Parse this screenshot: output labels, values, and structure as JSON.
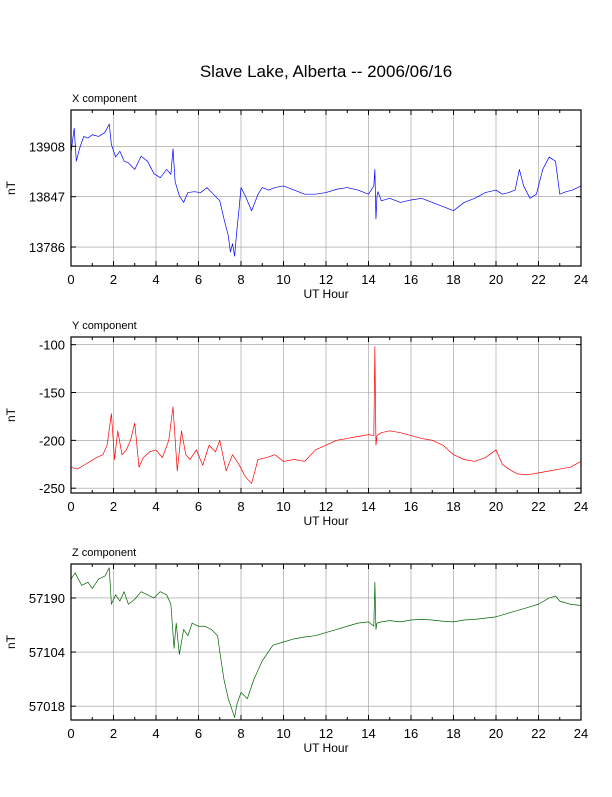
{
  "title": "Slave Lake, Alberta -- 2006/06/16",
  "chart_data": [
    {
      "type": "line",
      "panel_title": "X component",
      "xlabel": "UT Hour",
      "ylabel": "nT",
      "xlim": [
        0,
        24
      ],
      "ylim": [
        13763,
        13952
      ],
      "x_ticks": [
        0,
        2,
        4,
        6,
        8,
        10,
        12,
        14,
        16,
        18,
        20,
        22,
        24
      ],
      "y_ticks": [
        13786,
        13847,
        13908
      ],
      "grid": true,
      "series": [
        {
          "color": "#0000ff",
          "x": [
            0,
            0.15,
            0.25,
            0.4,
            0.6,
            0.8,
            1.0,
            1.3,
            1.6,
            1.8,
            1.9,
            2.1,
            2.3,
            2.5,
            2.7,
            3.0,
            3.3,
            3.6,
            3.9,
            4.2,
            4.5,
            4.7,
            4.8,
            4.9,
            5.1,
            5.3,
            5.5,
            5.8,
            6.1,
            6.4,
            6.7,
            7.0,
            7.2,
            7.4,
            7.5,
            7.6,
            7.7,
            7.8,
            7.9,
            8.0,
            8.2,
            8.5,
            8.8,
            9.0,
            9.3,
            9.6,
            10.0,
            10.5,
            11.0,
            11.5,
            12.0,
            12.5,
            13.0,
            13.5,
            14.0,
            14.25,
            14.3,
            14.35,
            14.4,
            14.45,
            14.6,
            15.0,
            15.5,
            16.0,
            16.5,
            17.0,
            17.5,
            18.0,
            18.5,
            19.0,
            19.5,
            20.0,
            20.3,
            20.6,
            20.9,
            21.1,
            21.3,
            21.6,
            21.9,
            22.2,
            22.5,
            22.8,
            23.0,
            23.3,
            23.6,
            24.0
          ],
          "y": [
            13900,
            13930,
            13890,
            13905,
            13920,
            13918,
            13922,
            13920,
            13925,
            13935,
            13910,
            13895,
            13902,
            13890,
            13888,
            13880,
            13896,
            13890,
            13875,
            13870,
            13880,
            13874,
            13905,
            13865,
            13848,
            13840,
            13852,
            13853,
            13852,
            13858,
            13850,
            13842,
            13820,
            13800,
            13780,
            13790,
            13775,
            13805,
            13830,
            13858,
            13848,
            13830,
            13850,
            13858,
            13855,
            13858,
            13860,
            13855,
            13850,
            13850,
            13852,
            13856,
            13858,
            13855,
            13850,
            13860,
            13880,
            13820,
            13848,
            13853,
            13842,
            13845,
            13840,
            13843,
            13845,
            13840,
            13835,
            13830,
            13840,
            13845,
            13852,
            13855,
            13850,
            13852,
            13855,
            13880,
            13860,
            13845,
            13850,
            13880,
            13895,
            13890,
            13850,
            13853,
            13855,
            13860
          ]
        }
      ]
    },
    {
      "type": "line",
      "panel_title": "Y component",
      "xlabel": "UT Hour",
      "ylabel": "nT",
      "xlim": [
        0,
        24
      ],
      "ylim": [
        -255,
        -92
      ],
      "x_ticks": [
        0,
        2,
        4,
        6,
        8,
        10,
        12,
        14,
        16,
        18,
        20,
        22,
        24
      ],
      "y_ticks": [
        -100,
        -150,
        -200,
        -250
      ],
      "grid": true,
      "series": [
        {
          "color": "#ff0000",
          "x": [
            0,
            0.3,
            0.6,
            0.9,
            1.2,
            1.5,
            1.7,
            1.9,
            2.05,
            2.2,
            2.4,
            2.6,
            2.8,
            3.0,
            3.2,
            3.4,
            3.7,
            4.0,
            4.3,
            4.6,
            4.8,
            5.0,
            5.2,
            5.4,
            5.6,
            5.9,
            6.2,
            6.5,
            6.8,
            7.0,
            7.3,
            7.6,
            7.9,
            8.2,
            8.5,
            8.8,
            9.2,
            9.6,
            10.0,
            10.5,
            11.0,
            11.5,
            12.0,
            12.5,
            13.0,
            13.5,
            14.0,
            14.25,
            14.3,
            14.35,
            14.4,
            14.6,
            15.0,
            15.5,
            16.0,
            16.5,
            17.0,
            17.5,
            18.0,
            18.5,
            19.0,
            19.5,
            20.0,
            20.3,
            20.6,
            21.0,
            21.5,
            22.0,
            22.5,
            23.0,
            23.5,
            24.0
          ],
          "y": [
            -228,
            -230,
            -226,
            -222,
            -218,
            -215,
            -205,
            -172,
            -220,
            -190,
            -215,
            -210,
            -200,
            -182,
            -228,
            -218,
            -212,
            -210,
            -218,
            -200,
            -165,
            -232,
            -190,
            -215,
            -220,
            -210,
            -226,
            -205,
            -212,
            -200,
            -232,
            -215,
            -225,
            -238,
            -245,
            -220,
            -218,
            -215,
            -222,
            -220,
            -222,
            -210,
            -205,
            -200,
            -198,
            -196,
            -194,
            -195,
            -102,
            -205,
            -195,
            -192,
            -190,
            -192,
            -195,
            -198,
            -200,
            -205,
            -215,
            -220,
            -222,
            -218,
            -210,
            -225,
            -230,
            -235,
            -236,
            -234,
            -232,
            -230,
            -228,
            -222
          ]
        }
      ]
    },
    {
      "type": "line",
      "panel_title": "Z component",
      "xlabel": "UT Hour",
      "ylabel": "nT",
      "xlim": [
        0,
        24
      ],
      "ylim": [
        56996,
        57244
      ],
      "x_ticks": [
        0,
        2,
        4,
        6,
        8,
        10,
        12,
        14,
        16,
        18,
        20,
        22,
        24
      ],
      "y_ticks": [
        57018,
        57104,
        57190
      ],
      "grid": true,
      "series": [
        {
          "color": "#006400",
          "x": [
            0,
            0.2,
            0.5,
            0.8,
            1.0,
            1.3,
            1.6,
            1.8,
            1.9,
            2.1,
            2.3,
            2.5,
            2.7,
            3.0,
            3.3,
            3.6,
            3.9,
            4.2,
            4.5,
            4.7,
            4.85,
            4.95,
            5.1,
            5.3,
            5.5,
            5.7,
            6.0,
            6.3,
            6.6,
            6.9,
            7.0,
            7.2,
            7.4,
            7.6,
            7.7,
            7.8,
            8.0,
            8.3,
            8.6,
            9.0,
            9.5,
            10.0,
            10.5,
            11.0,
            11.5,
            12.0,
            12.5,
            13.0,
            13.5,
            14.0,
            14.25,
            14.3,
            14.35,
            14.4,
            14.6,
            15.0,
            15.5,
            16.0,
            16.5,
            17.0,
            17.5,
            18.0,
            18.5,
            19.0,
            19.5,
            20.0,
            20.5,
            21.0,
            21.5,
            22.0,
            22.5,
            22.8,
            23.0,
            23.5,
            24.0
          ],
          "y": [
            57220,
            57230,
            57210,
            57215,
            57205,
            57220,
            57225,
            57238,
            57180,
            57195,
            57185,
            57200,
            57180,
            57188,
            57200,
            57195,
            57190,
            57200,
            57195,
            57180,
            57110,
            57150,
            57100,
            57140,
            57130,
            57150,
            57145,
            57145,
            57140,
            57130,
            57105,
            57060,
            57030,
            57010,
            57000,
            57020,
            57040,
            57030,
            57060,
            57090,
            57115,
            57120,
            57125,
            57128,
            57130,
            57135,
            57140,
            57145,
            57150,
            57152,
            57145,
            57215,
            57140,
            57150,
            57152,
            57154,
            57152,
            57155,
            57156,
            57155,
            57153,
            57152,
            57155,
            57156,
            57158,
            57160,
            57165,
            57170,
            57175,
            57180,
            57190,
            57193,
            57185,
            57180,
            57178
          ]
        }
      ]
    }
  ]
}
